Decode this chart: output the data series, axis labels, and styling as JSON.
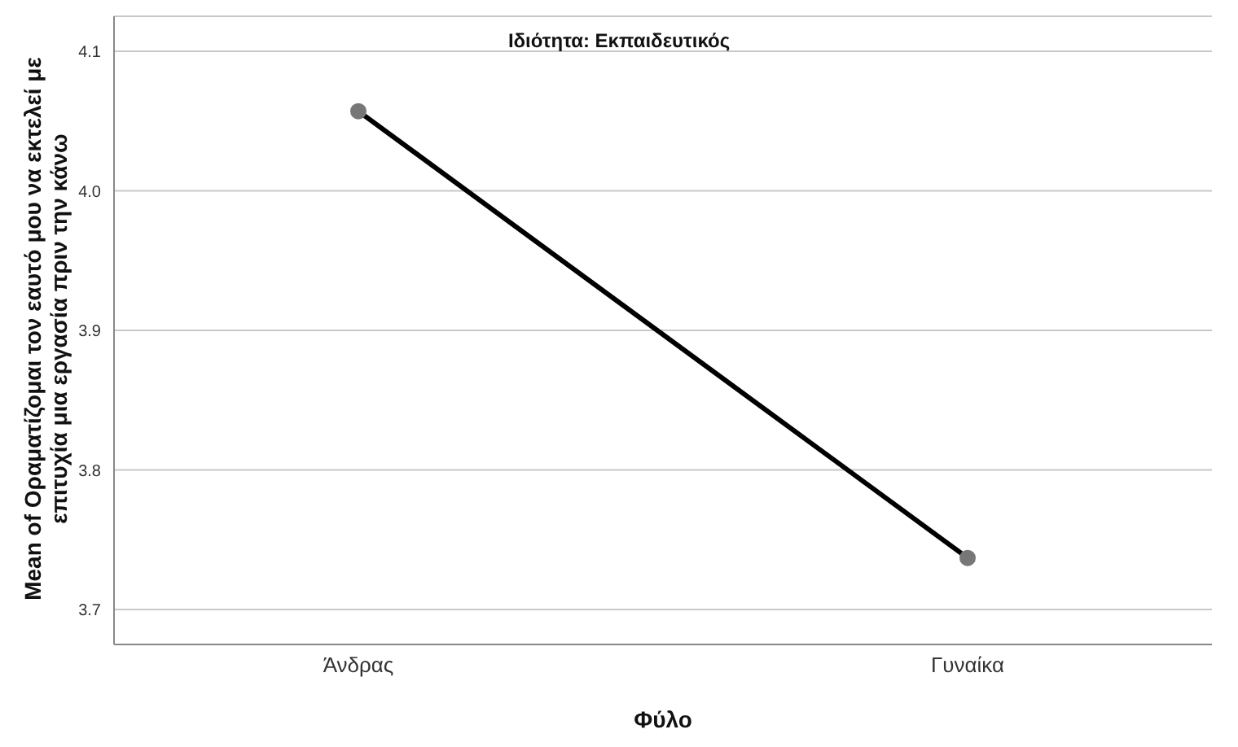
{
  "chart_data": {
    "type": "line",
    "title": "Ιδιότητα: Εκπαιδευτικός",
    "xlabel": "Φύλο",
    "ylabel": "Mean of Οραματίζομαι τον εαυτό μου να εκτελεί με επιτυχία μια εργασία πριν την κάνω",
    "categories": [
      "Άνδρας",
      "Γυναίκα"
    ],
    "series": [
      {
        "color": "#000000",
        "values": [
          4.057,
          3.737
        ]
      }
    ],
    "ylim": [
      3.675,
      4.125
    ],
    "yticks": [
      3.7,
      3.8,
      3.9,
      {
        "value": 4,
        "label": "4.0"
      },
      4.1
    ],
    "grid": "y",
    "marker": "circle",
    "line_style": "solid"
  }
}
